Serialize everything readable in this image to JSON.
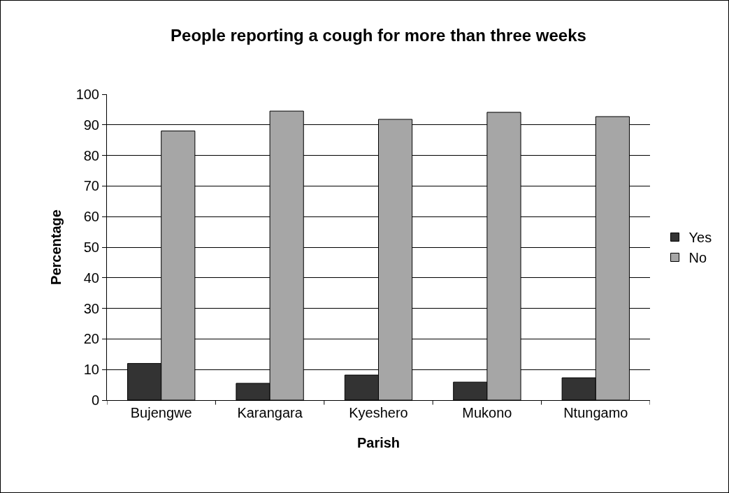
{
  "chart_data": {
    "type": "bar",
    "title": "People reporting a cough for more than three weeks",
    "xlabel": "Parish",
    "ylabel": "Percentage",
    "categories": [
      "Bujengwe",
      "Karangara",
      "Kyeshero",
      "Mukono",
      "Ntungamo"
    ],
    "series": [
      {
        "name": "Yes",
        "color": "#333333",
        "values": [
          12,
          5.5,
          8.2,
          5.9,
          7.3
        ]
      },
      {
        "name": "No",
        "color": "#a6a6a6",
        "values": [
          88,
          94.5,
          91.8,
          94.1,
          92.7
        ]
      }
    ],
    "ylim": [
      0,
      100
    ],
    "yticks": [
      0,
      10,
      20,
      30,
      40,
      50,
      60,
      70,
      80,
      90,
      100
    ],
    "grid": "y",
    "legend": "right"
  }
}
